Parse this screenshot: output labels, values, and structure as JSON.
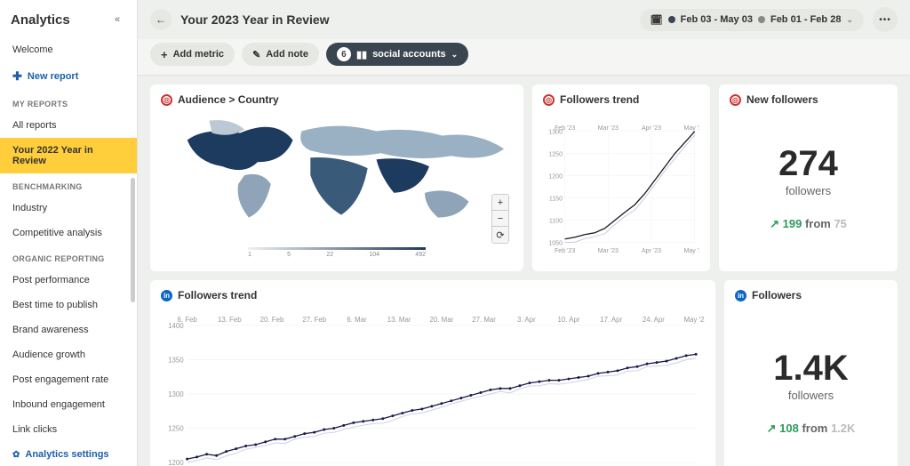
{
  "sidebar": {
    "title": "Analytics",
    "welcome": "Welcome",
    "new_report": "New report",
    "sections": {
      "my_reports": {
        "head": "MY REPORTS",
        "all": "All reports",
        "active": "Your 2022 Year in Review"
      },
      "bench": {
        "head": "BENCHMARKING",
        "industry": "Industry",
        "comp": "Competitive analysis"
      },
      "org": {
        "head": "ORGANIC REPORTING",
        "items": [
          "Post performance",
          "Best time to publish",
          "Brand awareness",
          "Audience growth",
          "Post engagement rate",
          "Inbound engagement",
          "Link clicks"
        ]
      }
    },
    "settings": "Analytics settings"
  },
  "topbar": {
    "title": "Your 2023 Year in Review",
    "range1": "Feb 03 - May 03",
    "range2": "Feb 01 - Feb 28"
  },
  "toolbar": {
    "add_metric": "Add metric",
    "add_note": "Add note",
    "social_count": "6",
    "social_label": "social accounts"
  },
  "cards": {
    "map": {
      "title": "Audience > Country",
      "legend_ticks": [
        "1",
        "5",
        "22",
        "104",
        "492"
      ],
      "accent": "#c93535"
    },
    "trend1": {
      "title": "Followers trend",
      "accent": "#c93535",
      "xlabels": [
        "Feb '23",
        "Mar '23",
        "Apr '23",
        "May '23"
      ],
      "ylim": [
        1050,
        1300
      ],
      "ytick_step": 50,
      "series_color": "#1a1a1a",
      "series2_color": "#8a88c8",
      "grid_color": "#eeeeee",
      "values": [
        1058,
        1062,
        1068,
        1072,
        1082,
        1100,
        1118,
        1135,
        1160,
        1190,
        1220,
        1250,
        1275,
        1300
      ]
    },
    "kpi1": {
      "title": "New followers",
      "accent": "#c93535",
      "value": "274",
      "unit": "followers",
      "delta": "199",
      "prev": "75"
    },
    "trend2": {
      "title": "Followers trend",
      "accent": "#0a66c2",
      "xlabels": [
        "6. Feb",
        "13. Feb",
        "20. Feb",
        "27. Feb",
        "6. Mar",
        "13. Mar",
        "20. Mar",
        "27. Mar",
        "3. Apr",
        "10. Apr",
        "17. Apr",
        "24. Apr",
        "May '23"
      ],
      "ylim": [
        1200,
        1400
      ],
      "yticks": [
        1200,
        1250,
        1300,
        1350,
        1400
      ],
      "series_color": "#1a1a4d",
      "marker_color": "#1a1a4d",
      "series2_color": "#a0a0d0",
      "values": [
        1205,
        1208,
        1212,
        1210,
        1216,
        1220,
        1224,
        1226,
        1230,
        1234,
        1234,
        1238,
        1242,
        1244,
        1248,
        1250,
        1254,
        1258,
        1260,
        1262,
        1264,
        1268,
        1272,
        1276,
        1278,
        1282,
        1286,
        1290,
        1294,
        1298,
        1302,
        1306,
        1308,
        1308,
        1312,
        1316,
        1318,
        1320,
        1320,
        1322,
        1324,
        1326,
        1330,
        1332,
        1334,
        1338,
        1340,
        1344,
        1346,
        1348,
        1352,
        1356,
        1358
      ]
    },
    "kpi2": {
      "title": "Followers",
      "accent": "#0a66c2",
      "value": "1.4K",
      "unit": "followers",
      "delta": "108",
      "prev": "1.2K"
    }
  },
  "colors": {
    "bg": "#eef0ee",
    "panel": "#ffffff",
    "active": "#ffce3a",
    "link": "#1e5fa8",
    "green": "#2e9b5a"
  }
}
